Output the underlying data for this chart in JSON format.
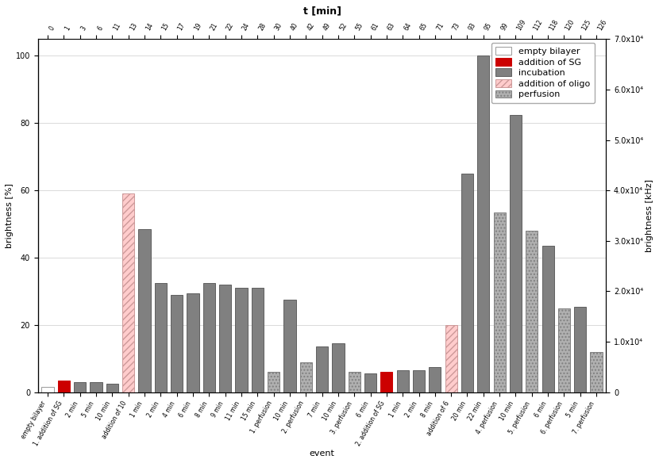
{
  "title_top": "t [min]",
  "xlabel": "event",
  "ylabel_left": "brightness [%]",
  "ylabel_right": "brightness [kHz]",
  "top_ticks": [
    "0",
    "1",
    "3",
    "6",
    "11",
    "13",
    "14",
    "15",
    "17",
    "19",
    "21",
    "22",
    "24",
    "28",
    "30",
    "40",
    "42",
    "49",
    "52",
    "55",
    "61",
    "63",
    "64",
    "65",
    "71",
    "73",
    "93",
    "95",
    "99",
    "109",
    "112",
    "118",
    "120",
    "125",
    "126"
  ],
  "ylim_left": [
    0,
    105
  ],
  "ylim_right": [
    0,
    70000
  ],
  "yticks_left": [
    0,
    20,
    40,
    60,
    80,
    100
  ],
  "yticks_right": [
    0,
    10000,
    20000,
    30000,
    40000,
    50000,
    60000,
    70000
  ],
  "ytick_labels_right": [
    "0",
    "1.0x10⁴",
    "2.0x10⁴",
    "3.0x10⁴",
    "4.0x10⁴",
    "5.0x10⁴",
    "6.0x10⁴",
    "7.0x10⁴"
  ],
  "bars": [
    {
      "label": "empty bilayer",
      "value": 1.5,
      "type": "empty_bilayer"
    },
    {
      "label": "1. addition of SG",
      "value": 3.5,
      "type": "addition_SG"
    },
    {
      "label": "2 min",
      "value": 3.0,
      "type": "incubation"
    },
    {
      "label": "5 min",
      "value": 3.0,
      "type": "incubation"
    },
    {
      "label": "10 min",
      "value": 2.5,
      "type": "incubation"
    },
    {
      "label": "addition of 10",
      "value": 59.0,
      "type": "addition_oligo"
    },
    {
      "label": "1 min",
      "value": 48.5,
      "type": "incubation"
    },
    {
      "label": "2 min",
      "value": 32.5,
      "type": "incubation"
    },
    {
      "label": "4 min",
      "value": 29.0,
      "type": "incubation"
    },
    {
      "label": "6 min",
      "value": 29.5,
      "type": "incubation"
    },
    {
      "label": "8 min",
      "value": 32.5,
      "type": "incubation"
    },
    {
      "label": "9 min",
      "value": 32.0,
      "type": "incubation"
    },
    {
      "label": "11 min",
      "value": 31.0,
      "type": "incubation"
    },
    {
      "label": "15 min",
      "value": 31.0,
      "type": "incubation"
    },
    {
      "label": "1. perfusion",
      "value": 6.0,
      "type": "perfusion"
    },
    {
      "label": "10 min",
      "value": 27.5,
      "type": "incubation"
    },
    {
      "label": "2. perfusion",
      "value": 9.0,
      "type": "perfusion"
    },
    {
      "label": "7 min",
      "value": 13.5,
      "type": "incubation"
    },
    {
      "label": "10 min",
      "value": 14.5,
      "type": "incubation"
    },
    {
      "label": "3. perfusion",
      "value": 6.0,
      "type": "perfusion"
    },
    {
      "label": "6 min",
      "value": 5.5,
      "type": "incubation"
    },
    {
      "label": "2. addition of SG",
      "value": 6.0,
      "type": "addition_SG"
    },
    {
      "label": "1 min",
      "value": 6.5,
      "type": "incubation"
    },
    {
      "label": "2 min",
      "value": 6.5,
      "type": "incubation"
    },
    {
      "label": "8 min",
      "value": 7.5,
      "type": "incubation"
    },
    {
      "label": "addition of 6",
      "value": 20.0,
      "type": "addition_oligo"
    },
    {
      "label": "20 min",
      "value": 65.0,
      "type": "incubation"
    },
    {
      "label": "22 min",
      "value": 100.0,
      "type": "incubation"
    },
    {
      "label": "4. perfusion",
      "value": 53.5,
      "type": "perfusion"
    },
    {
      "label": "10 min",
      "value": 82.5,
      "type": "incubation"
    },
    {
      "label": "5. perfusion",
      "value": 48.0,
      "type": "perfusion"
    },
    {
      "label": "6 min",
      "value": 43.5,
      "type": "incubation"
    },
    {
      "label": "6. perfusion",
      "value": 25.0,
      "type": "perfusion"
    },
    {
      "label": "5 min",
      "value": 25.5,
      "type": "incubation"
    },
    {
      "label": "7. perfusion",
      "value": 12.0,
      "type": "perfusion"
    }
  ],
  "colors": {
    "empty_bilayer": {
      "facecolor": "#ffffff",
      "edgecolor": "#999999",
      "hatch": ""
    },
    "addition_SG": {
      "facecolor": "#cc0000",
      "edgecolor": "#cc0000",
      "hatch": ""
    },
    "incubation": {
      "facecolor": "#808080",
      "edgecolor": "#606060",
      "hatch": ""
    },
    "addition_oligo": {
      "facecolor": "#ffcccc",
      "edgecolor": "#cc9999",
      "hatch": "////"
    },
    "perfusion": {
      "facecolor": "#b0b0b0",
      "edgecolor": "#808080",
      "hatch": "...."
    }
  },
  "legend_entries": [
    {
      "label": "empty bilayer",
      "type": "empty_bilayer"
    },
    {
      "label": "addition of SG",
      "type": "addition_SG"
    },
    {
      "label": "incubation",
      "type": "incubation"
    },
    {
      "label": "addition of oligo",
      "type": "addition_oligo"
    },
    {
      "label": "perfusion",
      "type": "perfusion"
    }
  ],
  "checker_light": "#e8e8e8",
  "checker_dark": "#ffffff",
  "checker_size": 40,
  "grid_color": "#cccccc",
  "font_size": 8,
  "tick_font_size": 7,
  "bar_width": 0.75
}
